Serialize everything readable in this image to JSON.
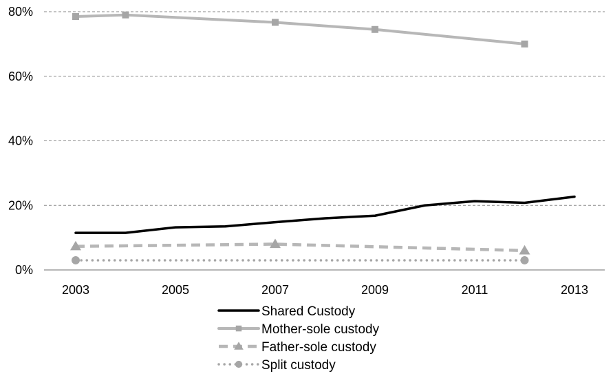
{
  "chart_data": {
    "type": "line",
    "title": "",
    "xlabel": "",
    "ylabel": "",
    "x_ticks": [
      "2003",
      "2005",
      "2007",
      "2009",
      "2011",
      "2013"
    ],
    "y_ticks": [
      "0%",
      "20%",
      "40%",
      "60%",
      "80%"
    ],
    "xlim": [
      2003,
      2013
    ],
    "ylim": [
      0,
      80
    ],
    "grid": "horizontal-dashed",
    "legend_position": "bottom",
    "series": [
      {
        "name": "Shared Custody",
        "color": "#000000",
        "line_style": "solid",
        "marker": "none",
        "points": [
          [
            2003,
            11.5
          ],
          [
            2004,
            11.5
          ],
          [
            2005,
            13.2
          ],
          [
            2006,
            13.5
          ],
          [
            2007,
            14.8
          ],
          [
            2008,
            16.0
          ],
          [
            2009,
            16.8
          ],
          [
            2010,
            20.0
          ],
          [
            2011,
            21.3
          ],
          [
            2012,
            20.8
          ],
          [
            2013,
            22.7
          ]
        ]
      },
      {
        "name": "Mother-sole custody",
        "color": "#b7b7b7",
        "line_style": "solid",
        "marker": "square",
        "points": [
          [
            2003,
            78.5
          ],
          [
            2004,
            79.0
          ],
          [
            2007,
            76.7
          ],
          [
            2009,
            74.5
          ],
          [
            2012,
            70.0
          ]
        ]
      },
      {
        "name": "Father-sole custody",
        "color": "#b7b7b7",
        "line_style": "dashed",
        "marker": "triangle",
        "points": [
          [
            2003,
            7.3
          ],
          [
            2007,
            8.0
          ],
          [
            2012,
            6.0
          ]
        ]
      },
      {
        "name": "Split custody",
        "color": "#a6a6a6",
        "line_style": "dotted",
        "marker": "circle",
        "points": [
          [
            2003,
            3.0
          ],
          [
            2012,
            3.0
          ]
        ]
      }
    ]
  }
}
